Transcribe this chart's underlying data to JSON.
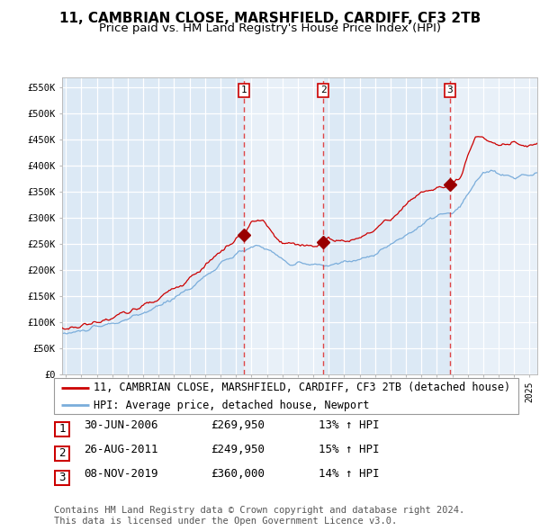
{
  "title": "11, CAMBRIAN CLOSE, MARSHFIELD, CARDIFF, CF3 2TB",
  "subtitle": "Price paid vs. HM Land Registry's House Price Index (HPI)",
  "red_line_label": "11, CAMBRIAN CLOSE, MARSHFIELD, CARDIFF, CF3 2TB (detached house)",
  "blue_line_label": "HPI: Average price, detached house, Newport",
  "transactions": [
    {
      "num": 1,
      "date": "30-JUN-2006",
      "price": 269950,
      "hpi_pct": "13%",
      "direction": "↑"
    },
    {
      "num": 2,
      "date": "26-AUG-2011",
      "price": 249950,
      "hpi_pct": "15%",
      "direction": "↑"
    },
    {
      "num": 3,
      "date": "08-NOV-2019",
      "price": 360000,
      "hpi_pct": "14%",
      "direction": "↑"
    }
  ],
  "transaction_dates_decimal": [
    2006.496,
    2011.651,
    2019.854
  ],
  "ylim": [
    0,
    570000
  ],
  "yticks": [
    0,
    50000,
    100000,
    150000,
    200000,
    250000,
    300000,
    350000,
    400000,
    450000,
    500000,
    550000
  ],
  "xlim_start": 1994.75,
  "xlim_end": 2025.5,
  "background_color": "#ffffff",
  "plot_bg_color": "#dce9f5",
  "plot_bg_color_light": "#e8f1fa",
  "grid_color": "#ffffff",
  "red_line_color": "#cc0000",
  "blue_line_color": "#7aaddb",
  "dashed_line_color": "#dd3333",
  "marker_color": "#990000",
  "footer_text": "Contains HM Land Registry data © Crown copyright and database right 2024.\nThis data is licensed under the Open Government Licence v3.0.",
  "copyright_fontsize": 7.5,
  "title_fontsize": 11,
  "subtitle_fontsize": 9.5,
  "tick_fontsize": 7.5,
  "legend_fontsize": 8.5,
  "table_fontsize": 9
}
